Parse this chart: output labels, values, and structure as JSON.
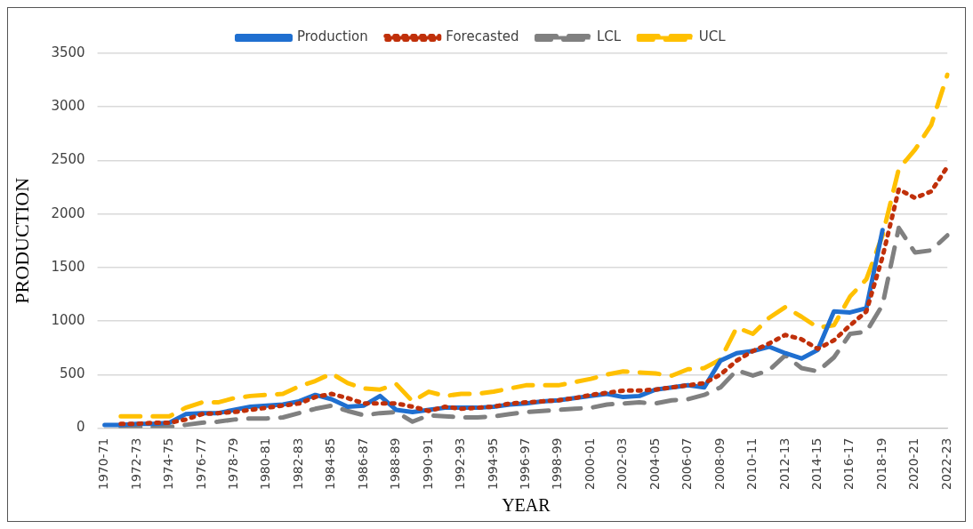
{
  "chart_data": {
    "type": "line",
    "xlabel": "YEAR",
    "ylabel": "PRODUCTION",
    "categories": [
      "1970-71",
      null,
      "1972-73",
      null,
      "1974-75",
      null,
      "1976-77",
      null,
      "1978-79",
      null,
      "1980-81",
      null,
      "1982-83",
      null,
      "1984-85",
      null,
      "1986-87",
      null,
      "1988-89",
      null,
      "1990-91",
      null,
      "1992-93",
      null,
      "1994-95",
      null,
      "1996-97",
      null,
      "1998-99",
      null,
      "2000-01",
      null,
      "2002-03",
      null,
      "2004-05",
      null,
      "2006-07",
      null,
      "2008-09",
      null,
      "2010-11",
      null,
      "2012-13",
      null,
      "2014-15",
      null,
      "2016-17",
      null,
      "2018-19",
      null,
      "2020-21",
      null,
      "2022-23"
    ],
    "series": [
      {
        "name": "Production",
        "color": "#1f6fd0",
        "line_style": "solid",
        "values": [
          30,
          30,
          40,
          40,
          50,
          130,
          140,
          140,
          170,
          200,
          210,
          220,
          250,
          310,
          270,
          200,
          210,
          300,
          170,
          150,
          170,
          190,
          190,
          190,
          200,
          220,
          230,
          250,
          260,
          280,
          300,
          320,
          290,
          300,
          360,
          380,
          400,
          380,
          630,
          700,
          720,
          760,
          700,
          650,
          730,
          1090,
          1080,
          1120,
          1850,
          null,
          null,
          null,
          null
        ]
      },
      {
        "name": "Forecasted",
        "color": "#c0300a",
        "line_style": "dotted",
        "values": [
          null,
          40,
          40,
          50,
          50,
          80,
          130,
          140,
          150,
          170,
          190,
          210,
          230,
          290,
          320,
          280,
          230,
          230,
          230,
          200,
          160,
          200,
          180,
          190,
          200,
          230,
          240,
          250,
          260,
          280,
          310,
          330,
          350,
          350,
          360,
          380,
          400,
          420,
          500,
          630,
          720,
          790,
          870,
          830,
          740,
          820,
          960,
          1090,
          1600,
          2230,
          2150,
          2210,
          2440
        ]
      },
      {
        "name": "LCL",
        "color": "#808080",
        "line_style": "dashed",
        "values": [
          null,
          10,
          10,
          10,
          10,
          30,
          50,
          60,
          80,
          90,
          90,
          100,
          140,
          180,
          210,
          160,
          120,
          140,
          150,
          60,
          120,
          110,
          100,
          100,
          110,
          130,
          150,
          160,
          170,
          180,
          190,
          220,
          230,
          240,
          230,
          260,
          270,
          310,
          380,
          540,
          490,
          540,
          680,
          560,
          530,
          660,
          880,
          900,
          1150,
          1870,
          1640,
          1660,
          1800
        ]
      },
      {
        "name": "UCL",
        "color": "#ffc000",
        "line_style": "dashed",
        "values": [
          null,
          110,
          110,
          110,
          110,
          190,
          240,
          240,
          280,
          300,
          310,
          320,
          390,
          440,
          510,
          420,
          370,
          360,
          410,
          250,
          340,
          300,
          320,
          320,
          340,
          370,
          400,
          400,
          400,
          430,
          460,
          500,
          530,
          520,
          510,
          490,
          550,
          560,
          640,
          940,
          880,
          1030,
          1130,
          1040,
          940,
          960,
          1230,
          1390,
          1800,
          2420,
          2600,
          2830,
          3300
        ]
      }
    ],
    "ylim": [
      0,
      3500
    ],
    "yticks": [
      0,
      500,
      1000,
      1500,
      2000,
      2500,
      3000,
      3500
    ],
    "grid": "y",
    "legend": "top",
    "marker": "none"
  }
}
